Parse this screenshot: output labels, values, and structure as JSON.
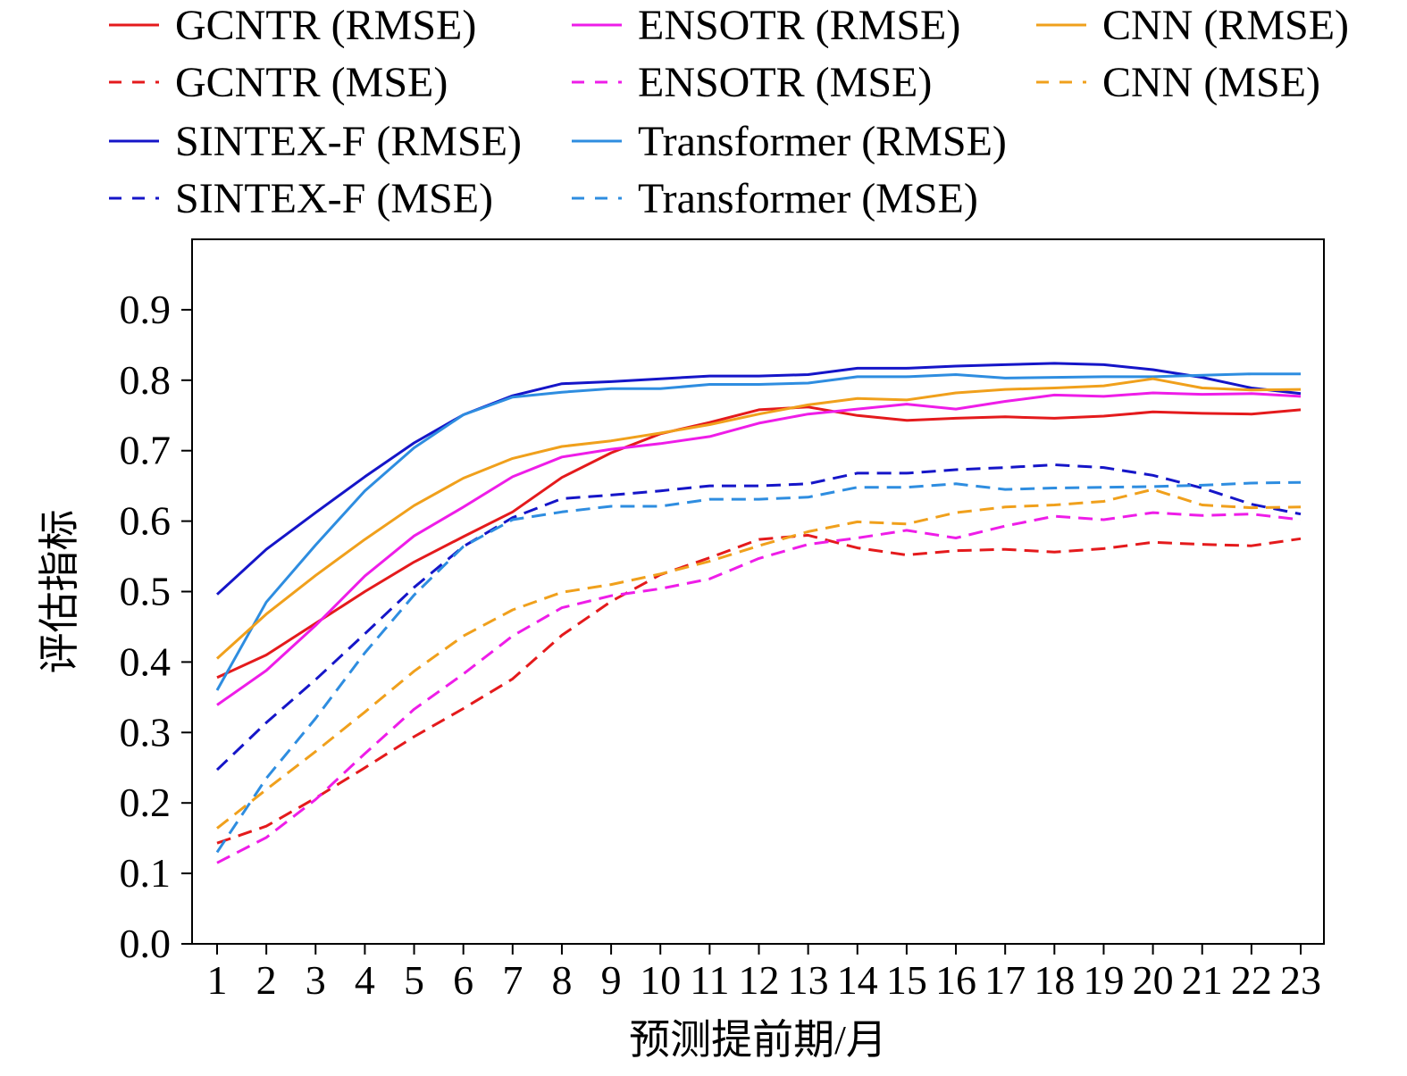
{
  "chart_data": {
    "type": "line",
    "title": "",
    "xlabel": "预测提前期/月",
    "ylabel": "评估指标",
    "x": [
      1,
      2,
      3,
      4,
      5,
      6,
      7,
      8,
      9,
      10,
      11,
      12,
      13,
      14,
      15,
      16,
      17,
      18,
      19,
      20,
      21,
      22,
      23
    ],
    "xticks": [
      "1",
      "2",
      "3",
      "4",
      "5",
      "6",
      "7",
      "8",
      "9",
      "10",
      "11",
      "12",
      "13",
      "14",
      "15",
      "16",
      "17",
      "18",
      "19",
      "20",
      "21",
      "22",
      "23"
    ],
    "yticks": [
      "0.0",
      "0.1",
      "0.2",
      "0.3",
      "0.4",
      "0.5",
      "0.6",
      "0.7",
      "0.8",
      "0.9"
    ],
    "ylim": [
      0.0,
      1.0
    ],
    "grid": false,
    "legend_position": "top",
    "series": [
      {
        "name": "GCNTR (RMSE)",
        "color": "#e41a1c",
        "dash": "solid",
        "values": [
          0.378,
          0.41,
          0.455,
          0.5,
          0.542,
          0.578,
          0.613,
          0.662,
          0.697,
          0.724,
          0.74,
          0.758,
          0.762,
          0.75,
          0.743,
          0.746,
          0.748,
          0.746,
          0.749,
          0.755,
          0.753,
          0.752,
          0.758
        ]
      },
      {
        "name": "GCNTR (MSE)",
        "color": "#e41a1c",
        "dash": "dashed",
        "values": [
          0.143,
          0.167,
          0.207,
          0.25,
          0.294,
          0.334,
          0.376,
          0.438,
          0.486,
          0.524,
          0.548,
          0.574,
          0.58,
          0.562,
          0.552,
          0.558,
          0.56,
          0.556,
          0.561,
          0.57,
          0.567,
          0.565,
          0.575
        ]
      },
      {
        "name": "SINTEX-F (RMSE)",
        "color": "#1515c8",
        "dash": "solid",
        "values": [
          0.496,
          0.56,
          0.612,
          0.663,
          0.711,
          0.751,
          0.778,
          0.795,
          0.798,
          0.802,
          0.806,
          0.806,
          0.808,
          0.817,
          0.817,
          0.82,
          0.822,
          0.824,
          0.822,
          0.815,
          0.804,
          0.789,
          0.781
        ]
      },
      {
        "name": "SINTEX-F (MSE)",
        "color": "#1515c8",
        "dash": "dashed",
        "values": [
          0.247,
          0.314,
          0.375,
          0.44,
          0.506,
          0.564,
          0.605,
          0.632,
          0.637,
          0.643,
          0.65,
          0.65,
          0.653,
          0.668,
          0.668,
          0.673,
          0.676,
          0.68,
          0.676,
          0.665,
          0.647,
          0.624,
          0.61
        ]
      },
      {
        "name": "ENSOTR (RMSE)",
        "color": "#ee1de8",
        "dash": "solid",
        "values": [
          0.339,
          0.388,
          0.452,
          0.522,
          0.579,
          0.62,
          0.663,
          0.691,
          0.702,
          0.71,
          0.72,
          0.739,
          0.752,
          0.759,
          0.766,
          0.759,
          0.77,
          0.779,
          0.777,
          0.782,
          0.78,
          0.781,
          0.777
        ]
      },
      {
        "name": "ENSOTR (MSE)",
        "color": "#ee1de8",
        "dash": "dashed",
        "values": [
          0.115,
          0.151,
          0.205,
          0.27,
          0.333,
          0.383,
          0.437,
          0.477,
          0.494,
          0.504,
          0.518,
          0.547,
          0.567,
          0.576,
          0.587,
          0.576,
          0.593,
          0.607,
          0.602,
          0.612,
          0.608,
          0.61,
          0.602
        ]
      },
      {
        "name": "Transformer (RMSE)",
        "color": "#2e8de0",
        "dash": "solid",
        "values": [
          0.36,
          0.485,
          0.566,
          0.643,
          0.704,
          0.751,
          0.776,
          0.783,
          0.788,
          0.788,
          0.794,
          0.794,
          0.796,
          0.805,
          0.805,
          0.808,
          0.803,
          0.804,
          0.805,
          0.805,
          0.807,
          0.809,
          0.809
        ]
      },
      {
        "name": "Transformer (MSE)",
        "color": "#2e8de0",
        "dash": "dashed",
        "values": [
          0.13,
          0.235,
          0.32,
          0.413,
          0.495,
          0.564,
          0.602,
          0.613,
          0.621,
          0.621,
          0.631,
          0.631,
          0.634,
          0.648,
          0.648,
          0.653,
          0.645,
          0.647,
          0.648,
          0.649,
          0.651,
          0.654,
          0.655
        ]
      },
      {
        "name": "CNN (RMSE)",
        "color": "#f0a01c",
        "dash": "solid",
        "values": [
          0.405,
          0.468,
          0.523,
          0.574,
          0.622,
          0.661,
          0.689,
          0.706,
          0.714,
          0.725,
          0.737,
          0.752,
          0.765,
          0.774,
          0.772,
          0.782,
          0.787,
          0.789,
          0.792,
          0.802,
          0.789,
          0.786,
          0.787
        ]
      },
      {
        "name": "CNN (MSE)",
        "color": "#f0a01c",
        "dash": "dashed",
        "values": [
          0.164,
          0.219,
          0.273,
          0.329,
          0.387,
          0.437,
          0.474,
          0.499,
          0.51,
          0.525,
          0.543,
          0.565,
          0.585,
          0.599,
          0.596,
          0.612,
          0.62,
          0.623,
          0.628,
          0.645,
          0.623,
          0.619,
          0.62
        ]
      }
    ]
  }
}
